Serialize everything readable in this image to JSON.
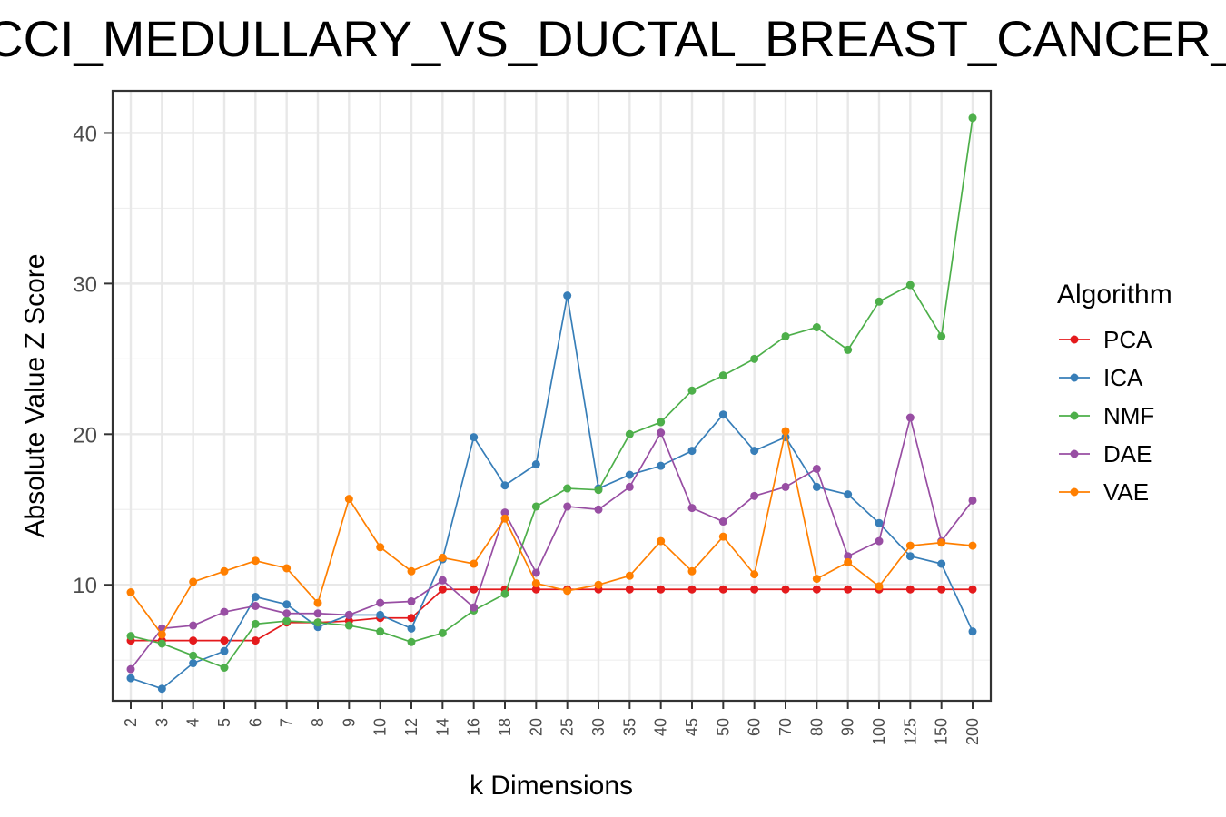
{
  "chart_data": {
    "type": "line",
    "title": "CCI_MEDULLARY_VS_DUCTAL_BREAST_CANCER_",
    "xlabel": "k Dimensions",
    "ylabel": "Absolute Value Z Score",
    "categories": [
      "2",
      "3",
      "4",
      "5",
      "6",
      "7",
      "8",
      "9",
      "10",
      "12",
      "14",
      "16",
      "18",
      "20",
      "25",
      "30",
      "35",
      "40",
      "45",
      "50",
      "60",
      "70",
      "80",
      "90",
      "100",
      "125",
      "150",
      "200"
    ],
    "y_ticks": [
      10,
      20,
      30,
      40
    ],
    "ylim": [
      2.3,
      42.8
    ],
    "grid": true,
    "legend": {
      "title": "Algorithm",
      "position": "right"
    },
    "series": [
      {
        "name": "PCA",
        "color": "#E41A1C",
        "values": [
          6.3,
          6.3,
          6.3,
          6.3,
          6.3,
          7.5,
          7.5,
          7.6,
          7.8,
          7.8,
          9.7,
          9.7,
          9.7,
          9.7,
          9.7,
          9.7,
          9.7,
          9.7,
          9.7,
          9.7,
          9.7,
          9.7,
          9.7,
          9.7,
          9.7,
          9.7,
          9.7,
          9.7
        ]
      },
      {
        "name": "ICA",
        "color": "#377EB8",
        "values": [
          3.8,
          3.1,
          4.8,
          5.6,
          9.2,
          8.7,
          7.2,
          8.0,
          8.0,
          7.1,
          11.7,
          19.8,
          16.6,
          18.0,
          29.2,
          16.4,
          17.3,
          17.9,
          18.9,
          21.3,
          18.9,
          19.8,
          16.5,
          16.0,
          14.1,
          11.9,
          11.4,
          6.9
        ]
      },
      {
        "name": "NMF",
        "color": "#4DAF4A",
        "values": [
          6.6,
          6.1,
          5.3,
          4.5,
          7.4,
          7.6,
          7.5,
          7.3,
          6.9,
          6.2,
          6.8,
          8.3,
          9.4,
          15.2,
          16.4,
          16.3,
          20.0,
          20.8,
          22.9,
          23.9,
          25.0,
          26.5,
          27.1,
          25.6,
          28.8,
          29.9,
          26.5,
          41.0
        ]
      },
      {
        "name": "DAE",
        "color": "#984EA3",
        "values": [
          4.4,
          7.1,
          7.3,
          8.2,
          8.6,
          8.1,
          8.1,
          8.0,
          8.8,
          8.9,
          10.3,
          8.5,
          14.8,
          10.8,
          15.2,
          15.0,
          16.5,
          20.1,
          15.1,
          14.2,
          15.9,
          16.5,
          17.7,
          11.9,
          12.9,
          21.1,
          12.9,
          15.6
        ]
      },
      {
        "name": "VAE",
        "color": "#FF7F00",
        "values": [
          9.5,
          6.7,
          10.2,
          10.9,
          11.6,
          11.1,
          8.8,
          15.7,
          12.5,
          10.9,
          11.8,
          11.4,
          14.4,
          10.1,
          9.6,
          10.0,
          10.6,
          12.9,
          10.9,
          13.2,
          10.7,
          20.2,
          10.4,
          11.5,
          9.9,
          12.6,
          12.8,
          12.6
        ]
      }
    ]
  }
}
